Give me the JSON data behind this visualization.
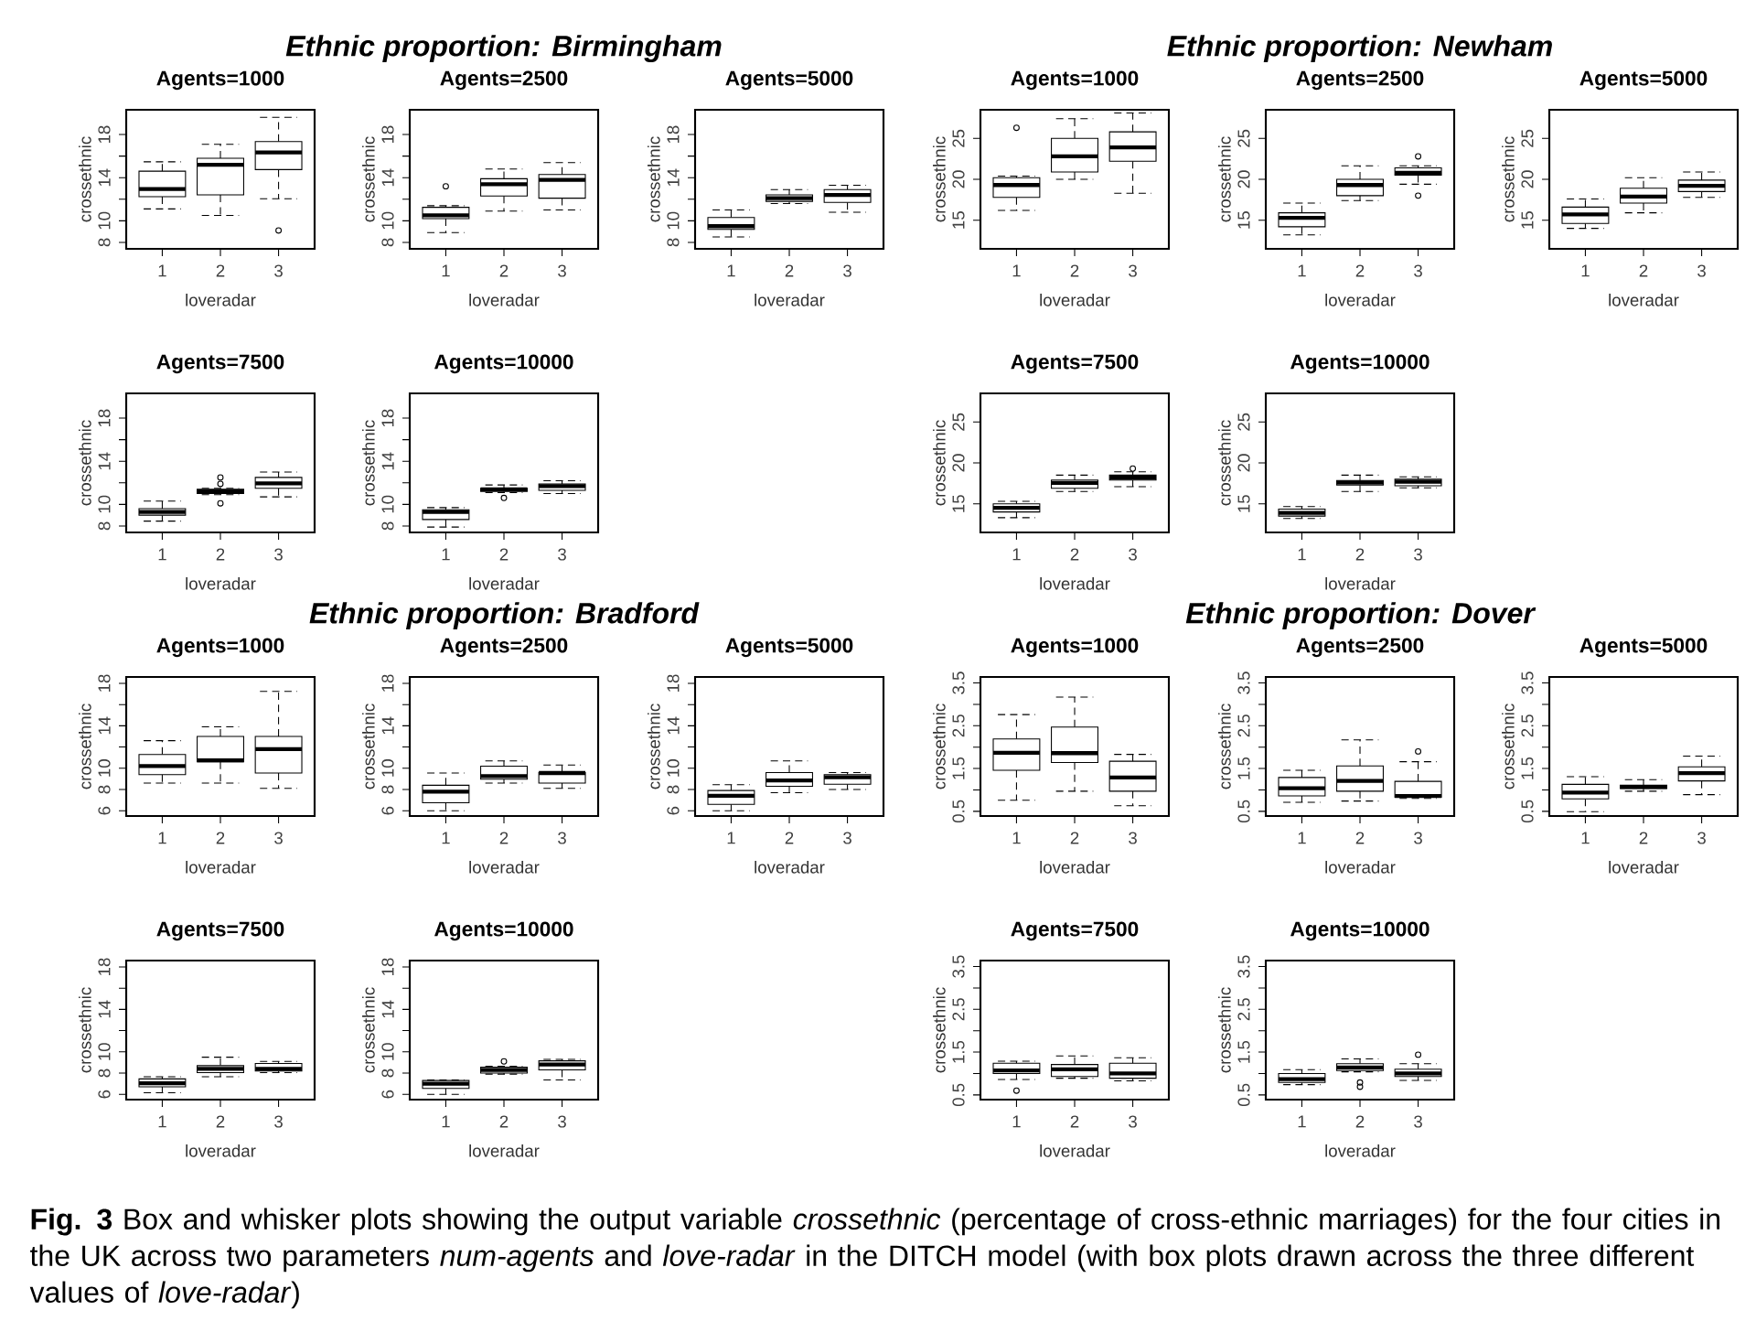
{
  "chart_data": [
    {
      "type": "box",
      "subtitle": "Agents=1000",
      "xlabel": "loveradar",
      "ylabel": "crossethnic",
      "categories": [
        "1",
        "2",
        "3"
      ],
      "ylim": [
        7.4,
        20.3
      ],
      "yticks": [
        8,
        10,
        {
          "value": 12,
          "label": null
        },
        14,
        {
          "value": 16,
          "label": null
        },
        18
      ],
      "boxes": [
        {
          "low": 11.1,
          "q1": 12.24,
          "median": 12.94,
          "q3": 14.6,
          "high": 15.47
        },
        {
          "low": 10.5,
          "q1": 12.4,
          "median": 15.2,
          "q3": 15.8,
          "high": 17.1
        },
        {
          "low": 12.05,
          "q1": 14.75,
          "median": 16.35,
          "q3": 17.35,
          "high": 19.6,
          "outliers": [
            9.1
          ]
        }
      ]
    },
    {
      "type": "box",
      "title": "Ethnic proportion: Birmingham",
      "subtitle": "Agents=2500",
      "xlabel": "loveradar",
      "ylabel": "crossethnic",
      "categories": [
        "1",
        "2",
        "3"
      ],
      "ylim": [
        7.4,
        20.3
      ],
      "yticks": [
        8,
        10,
        {
          "value": 12,
          "label": null
        },
        14,
        {
          "value": 16,
          "label": null
        },
        18
      ],
      "boxes": [
        {
          "low": 8.9,
          "q1": 10.2,
          "median": 10.5,
          "q3": 11.25,
          "high": 11.4,
          "outliers": [
            13.2
          ]
        },
        {
          "low": 10.9,
          "q1": 12.3,
          "median": 13.4,
          "q3": 13.9,
          "high": 14.8
        },
        {
          "low": 11.0,
          "q1": 12.1,
          "median": 13.8,
          "q3": 14.3,
          "high": 15.4
        }
      ]
    },
    {
      "type": "box",
      "subtitle": "Agents=5000",
      "xlabel": "loveradar",
      "ylabel": "crossethnic",
      "categories": [
        "1",
        "2",
        "3"
      ],
      "ylim": [
        7.4,
        20.3
      ],
      "yticks": [
        8,
        10,
        {
          "value": 12,
          "label": null
        },
        14,
        {
          "value": 16,
          "label": null
        },
        18
      ],
      "boxes": [
        {
          "low": 8.5,
          "q1": 9.2,
          "median": 9.5,
          "q3": 10.3,
          "high": 11.0
        },
        {
          "low": 11.6,
          "q1": 11.8,
          "median": 12.1,
          "q3": 12.4,
          "high": 12.9
        },
        {
          "low": 10.8,
          "q1": 11.7,
          "median": 12.4,
          "q3": 12.9,
          "high": 13.3
        }
      ]
    },
    {
      "type": "box",
      "subtitle": "Agents=7500",
      "xlabel": "loveradar",
      "ylabel": "crossethnic",
      "categories": [
        "1",
        "2",
        "3"
      ],
      "ylim": [
        7.4,
        20.3
      ],
      "yticks": [
        8,
        10,
        {
          "value": 12,
          "label": null
        },
        14,
        {
          "value": 16,
          "label": null
        },
        18
      ],
      "boxes": [
        {
          "low": 8.45,
          "q1": 9.0,
          "median": 9.3,
          "q3": 9.6,
          "high": 10.3
        },
        {
          "low": 10.9,
          "q1": 11.0,
          "median": 11.2,
          "q3": 11.4,
          "high": 11.5,
          "outliers": [
            12.5,
            11.9,
            10.1
          ]
        },
        {
          "low": 10.7,
          "q1": 11.5,
          "median": 11.95,
          "q3": 12.5,
          "high": 13.0
        }
      ]
    },
    {
      "type": "box",
      "subtitle": "Agents=10000",
      "xlabel": "loveradar",
      "ylabel": "crossethnic",
      "categories": [
        "1",
        "2",
        "3"
      ],
      "ylim": [
        7.4,
        20.3
      ],
      "yticks": [
        8,
        10,
        {
          "value": 12,
          "label": null
        },
        14,
        {
          "value": 16,
          "label": null
        },
        18
      ],
      "boxes": [
        {
          "low": 7.9,
          "q1": 8.6,
          "median": 9.3,
          "q3": 9.5,
          "high": 9.7
        },
        {
          "low": 11.1,
          "q1": 11.2,
          "median": 11.4,
          "q3": 11.5,
          "high": 11.8,
          "outliers": [
            10.6
          ]
        },
        {
          "low": 11.0,
          "q1": 11.3,
          "median": 11.7,
          "q3": 11.9,
          "high": 12.2
        }
      ]
    },
    {
      "type": "box",
      "subtitle": "Agents=1000",
      "xlabel": "loveradar",
      "ylabel": "crossethnic",
      "categories": [
        "1",
        "2",
        "3"
      ],
      "ylim": [
        11.5,
        28.5
      ],
      "yticks": [
        15,
        20,
        25
      ],
      "boxes": [
        {
          "low": 16.2,
          "q1": 17.8,
          "median": 19.3,
          "q3": 20.2,
          "high": 20.4,
          "outliers": [
            26.3
          ]
        },
        {
          "low": 20.0,
          "q1": 20.9,
          "median": 22.8,
          "q3": 25.0,
          "high": 27.4
        },
        {
          "low": 18.3,
          "q1": 22.2,
          "median": 23.9,
          "q3": 25.8,
          "high": 28.1
        }
      ]
    },
    {
      "type": "box",
      "title": "Ethnic proportion: Newham",
      "subtitle": "Agents=2500",
      "xlabel": "loveradar",
      "ylabel": "crossethnic",
      "categories": [
        "1",
        "2",
        "3"
      ],
      "ylim": [
        11.5,
        28.5
      ],
      "yticks": [
        15,
        20,
        25
      ],
      "boxes": [
        {
          "low": 13.2,
          "q1": 14.2,
          "median": 15.3,
          "q3": 15.9,
          "high": 17.1
        },
        {
          "low": 17.4,
          "q1": 18.0,
          "median": 19.3,
          "q3": 20.0,
          "high": 21.65
        },
        {
          "low": 19.4,
          "q1": 20.5,
          "median": 20.8,
          "q3": 21.4,
          "high": 21.65,
          "outliers": [
            22.8,
            18.0
          ]
        }
      ]
    },
    {
      "type": "box",
      "subtitle": "Agents=5000",
      "xlabel": "loveradar",
      "ylabel": "crossethnic",
      "categories": [
        "1",
        "2",
        "3"
      ],
      "ylim": [
        11.5,
        28.5
      ],
      "yticks": [
        15,
        20,
        25
      ],
      "boxes": [
        {
          "low": 14.0,
          "q1": 14.6,
          "median": 15.7,
          "q3": 16.6,
          "high": 17.6
        },
        {
          "low": 15.9,
          "q1": 17.1,
          "median": 17.9,
          "q3": 18.9,
          "high": 20.2
        },
        {
          "low": 17.8,
          "q1": 18.5,
          "median": 19.2,
          "q3": 19.9,
          "high": 20.9
        }
      ]
    },
    {
      "type": "box",
      "subtitle": "Agents=7500",
      "xlabel": "loveradar",
      "ylabel": "crossethnic",
      "categories": [
        "1",
        "2",
        "3"
      ],
      "ylim": [
        11.5,
        28.5
      ],
      "yticks": [
        15,
        20,
        25
      ],
      "boxes": [
        {
          "low": 13.3,
          "q1": 14.0,
          "median": 14.5,
          "q3": 15.0,
          "high": 15.3
        },
        {
          "low": 16.5,
          "q1": 16.9,
          "median": 17.55,
          "q3": 17.9,
          "high": 18.5
        },
        {
          "low": 17.1,
          "q1": 17.9,
          "median": 18.2,
          "q3": 18.5,
          "high": 18.9,
          "outliers": [
            19.3
          ]
        }
      ]
    },
    {
      "type": "box",
      "subtitle": "Agents=10000",
      "xlabel": "loveradar",
      "ylabel": "crossethnic",
      "categories": [
        "1",
        "2",
        "3"
      ],
      "ylim": [
        11.5,
        28.5
      ],
      "yticks": [
        15,
        20,
        25
      ],
      "boxes": [
        {
          "low": 13.2,
          "q1": 13.5,
          "median": 13.9,
          "q3": 14.35,
          "high": 14.65
        },
        {
          "low": 16.5,
          "q1": 17.3,
          "median": 17.6,
          "q3": 17.85,
          "high": 18.5
        },
        {
          "low": 16.95,
          "q1": 17.2,
          "median": 17.7,
          "q3": 18.0,
          "high": 18.3
        }
      ]
    },
    {
      "type": "box",
      "subtitle": "Agents=1000",
      "xlabel": "loveradar",
      "ylabel": "crossethnic",
      "categories": [
        "1",
        "2",
        "3"
      ],
      "ylim": [
        5.5,
        18.6
      ],
      "yticks": [
        6,
        8,
        10,
        {
          "value": 12,
          "label": null
        },
        14,
        {
          "value": 16,
          "label": null
        },
        18
      ],
      "boxes": [
        {
          "low": 8.6,
          "q1": 9.4,
          "median": 10.2,
          "q3": 11.3,
          "high": 12.6
        },
        {
          "low": 8.6,
          "q1": 10.6,
          "median": 10.75,
          "q3": 13.0,
          "high": 13.9
        },
        {
          "low": 8.1,
          "q1": 9.55,
          "median": 11.8,
          "q3": 13.0,
          "high": 17.25
        }
      ]
    },
    {
      "type": "box",
      "title": "Ethnic proportion: Bradford",
      "subtitle": "Agents=2500",
      "xlabel": "loveradar",
      "ylabel": "crossethnic",
      "categories": [
        "1",
        "2",
        "3"
      ],
      "ylim": [
        5.5,
        18.6
      ],
      "yticks": [
        6,
        8,
        10,
        {
          "value": 12,
          "label": null
        },
        14,
        {
          "value": 16,
          "label": null
        },
        18
      ],
      "boxes": [
        {
          "low": 6.0,
          "q1": 6.75,
          "median": 7.8,
          "q3": 8.4,
          "high": 9.55
        },
        {
          "low": 8.6,
          "q1": 8.97,
          "median": 9.25,
          "q3": 10.2,
          "high": 10.7
        },
        {
          "low": 8.1,
          "q1": 8.6,
          "median": 9.55,
          "q3": 9.6,
          "high": 10.3
        }
      ]
    },
    {
      "type": "box",
      "subtitle": "Agents=5000",
      "xlabel": "loveradar",
      "ylabel": "crossethnic",
      "categories": [
        "1",
        "2",
        "3"
      ],
      "ylim": [
        5.5,
        18.6
      ],
      "yticks": [
        6,
        8,
        10,
        {
          "value": 12,
          "label": null
        },
        14,
        {
          "value": 16,
          "label": null
        },
        18
      ],
      "boxes": [
        {
          "low": 6.0,
          "q1": 6.6,
          "median": 7.4,
          "q3": 7.9,
          "high": 8.45
        },
        {
          "low": 7.7,
          "q1": 8.3,
          "median": 8.85,
          "q3": 9.6,
          "high": 10.7
        },
        {
          "low": 8.0,
          "q1": 8.5,
          "median": 9.15,
          "q3": 9.4,
          "high": 9.6
        }
      ]
    },
    {
      "type": "box",
      "subtitle": "Agents=7500",
      "xlabel": "loveradar",
      "ylabel": "crossethnic",
      "categories": [
        "1",
        "2",
        "3"
      ],
      "ylim": [
        5.5,
        18.6
      ],
      "yticks": [
        6,
        8,
        10,
        {
          "value": 12,
          "label": null
        },
        14,
        {
          "value": 16,
          "label": null
        },
        18
      ],
      "boxes": [
        {
          "low": 6.15,
          "q1": 6.7,
          "median": 7.05,
          "q3": 7.45,
          "high": 7.65
        },
        {
          "low": 7.65,
          "q1": 8.05,
          "median": 8.4,
          "q3": 8.7,
          "high": 9.5
        },
        {
          "low": 8.05,
          "q1": 8.2,
          "median": 8.4,
          "q3": 8.9,
          "high": 9.1
        }
      ]
    },
    {
      "type": "box",
      "subtitle": "Agents=10000",
      "xlabel": "loveradar",
      "ylabel": "crossethnic",
      "categories": [
        "1",
        "2",
        "3"
      ],
      "ylim": [
        5.5,
        18.6
      ],
      "yticks": [
        6,
        8,
        10,
        {
          "value": 12,
          "label": null
        },
        14,
        {
          "value": 16,
          "label": null
        },
        18
      ],
      "boxes": [
        {
          "low": 6.0,
          "q1": 6.55,
          "median": 7.0,
          "q3": 7.3,
          "high": 7.35
        },
        {
          "low": 7.9,
          "q1": 8.0,
          "median": 8.3,
          "q3": 8.55,
          "high": 8.65,
          "outliers": [
            9.1
          ]
        },
        {
          "low": 7.35,
          "q1": 8.3,
          "median": 8.8,
          "q3": 9.15,
          "high": 9.3
        }
      ]
    },
    {
      "type": "box",
      "subtitle": "Agents=1000",
      "xlabel": "loveradar",
      "ylabel": "crossethnic",
      "categories": [
        "1",
        "2",
        "3"
      ],
      "ylim": [
        0.39,
        3.64
      ],
      "yticks": [
        0.5,
        {
          "value": 1,
          "label": null
        },
        1.5,
        {
          "value": 2,
          "label": null
        },
        2.5,
        {
          "value": 3,
          "label": null
        },
        3.5
      ],
      "boxes": [
        {
          "low": 0.76,
          "q1": 1.46,
          "median": 1.87,
          "q3": 2.19,
          "high": 2.76
        },
        {
          "low": 0.97,
          "q1": 1.64,
          "median": 1.86,
          "q3": 2.47,
          "high": 3.17
        },
        {
          "low": 0.63,
          "q1": 0.97,
          "median": 1.29,
          "q3": 1.67,
          "high": 1.83
        }
      ]
    },
    {
      "type": "box",
      "title": "Ethnic proportion: Dover",
      "subtitle": "Agents=2500",
      "xlabel": "loveradar",
      "ylabel": "crossethnic",
      "categories": [
        "1",
        "2",
        "3"
      ],
      "ylim": [
        0.39,
        3.64
      ],
      "yticks": [
        0.5,
        {
          "value": 1,
          "label": null
        },
        1.5,
        {
          "value": 2,
          "label": null
        },
        2.5,
        {
          "value": 3,
          "label": null
        },
        3.5
      ],
      "boxes": [
        {
          "low": 0.71,
          "q1": 0.86,
          "median": 1.04,
          "q3": 1.29,
          "high": 1.46
        },
        {
          "low": 0.74,
          "q1": 0.97,
          "median": 1.21,
          "q3": 1.56,
          "high": 2.17
        },
        {
          "low": 0.8,
          "q1": 0.83,
          "median": 0.86,
          "q3": 1.2,
          "high": 1.66,
          "outliers": [
            1.9
          ]
        }
      ]
    },
    {
      "type": "box",
      "subtitle": "Agents=5000",
      "xlabel": "loveradar",
      "ylabel": "crossethnic",
      "categories": [
        "1",
        "2",
        "3"
      ],
      "ylim": [
        0.39,
        3.64
      ],
      "yticks": [
        0.5,
        {
          "value": 1,
          "label": null
        },
        1.5,
        {
          "value": 2,
          "label": null
        },
        2.5,
        {
          "value": 3,
          "label": null
        },
        3.5
      ],
      "boxes": [
        {
          "low": 0.49,
          "q1": 0.79,
          "median": 0.94,
          "q3": 1.13,
          "high": 1.31
        },
        {
          "low": 0.97,
          "q1": 1.03,
          "median": 1.07,
          "q3": 1.11,
          "high": 1.24
        },
        {
          "low": 0.89,
          "q1": 1.21,
          "median": 1.39,
          "q3": 1.54,
          "high": 1.79
        }
      ]
    },
    {
      "type": "box",
      "subtitle": "Agents=7500",
      "xlabel": "loveradar",
      "ylabel": "crossethnic",
      "categories": [
        "1",
        "2",
        "3"
      ],
      "ylim": [
        0.39,
        3.64
      ],
      "yticks": [
        0.5,
        {
          "value": 1,
          "label": null
        },
        1.5,
        {
          "value": 2,
          "label": null
        },
        2.5,
        {
          "value": 3,
          "label": null
        },
        3.5
      ],
      "boxes": [
        {
          "low": 0.86,
          "q1": 1.0,
          "median": 1.07,
          "q3": 1.24,
          "high": 1.29,
          "outliers": [
            0.6
          ]
        },
        {
          "low": 0.89,
          "q1": 0.93,
          "median": 1.1,
          "q3": 1.21,
          "high": 1.41
        },
        {
          "low": 0.83,
          "q1": 0.89,
          "median": 1.0,
          "q3": 1.24,
          "high": 1.37
        }
      ]
    },
    {
      "type": "box",
      "subtitle": "Agents=10000",
      "xlabel": "loveradar",
      "ylabel": "crossethnic",
      "categories": [
        "1",
        "2",
        "3"
      ],
      "ylim": [
        0.39,
        3.64
      ],
      "yticks": [
        0.5,
        {
          "value": 1,
          "label": null
        },
        1.5,
        {
          "value": 2,
          "label": null
        },
        2.5,
        {
          "value": 3,
          "label": null
        },
        3.5
      ],
      "boxes": [
        {
          "low": 0.74,
          "q1": 0.79,
          "median": 0.87,
          "q3": 1.0,
          "high": 1.09
        },
        {
          "low": 1.04,
          "q1": 1.07,
          "median": 1.14,
          "q3": 1.23,
          "high": 1.34,
          "outliers": [
            0.79,
            0.69
          ]
        },
        {
          "low": 0.84,
          "q1": 0.93,
          "median": 1.0,
          "q3": 1.1,
          "high": 1.23,
          "outliers": [
            1.44
          ]
        }
      ],
      "annotations": [
        "**Fig. 3** Box and whisker plots showing the output variable *crossethnic* (percentage of cross-ethnic marriages) for the four cities in the UK across two parameters *num-agents* and *love-radar* in the DITCH model (with box plots drawn across the three different values of *love-radar*)"
      ]
    }
  ]
}
